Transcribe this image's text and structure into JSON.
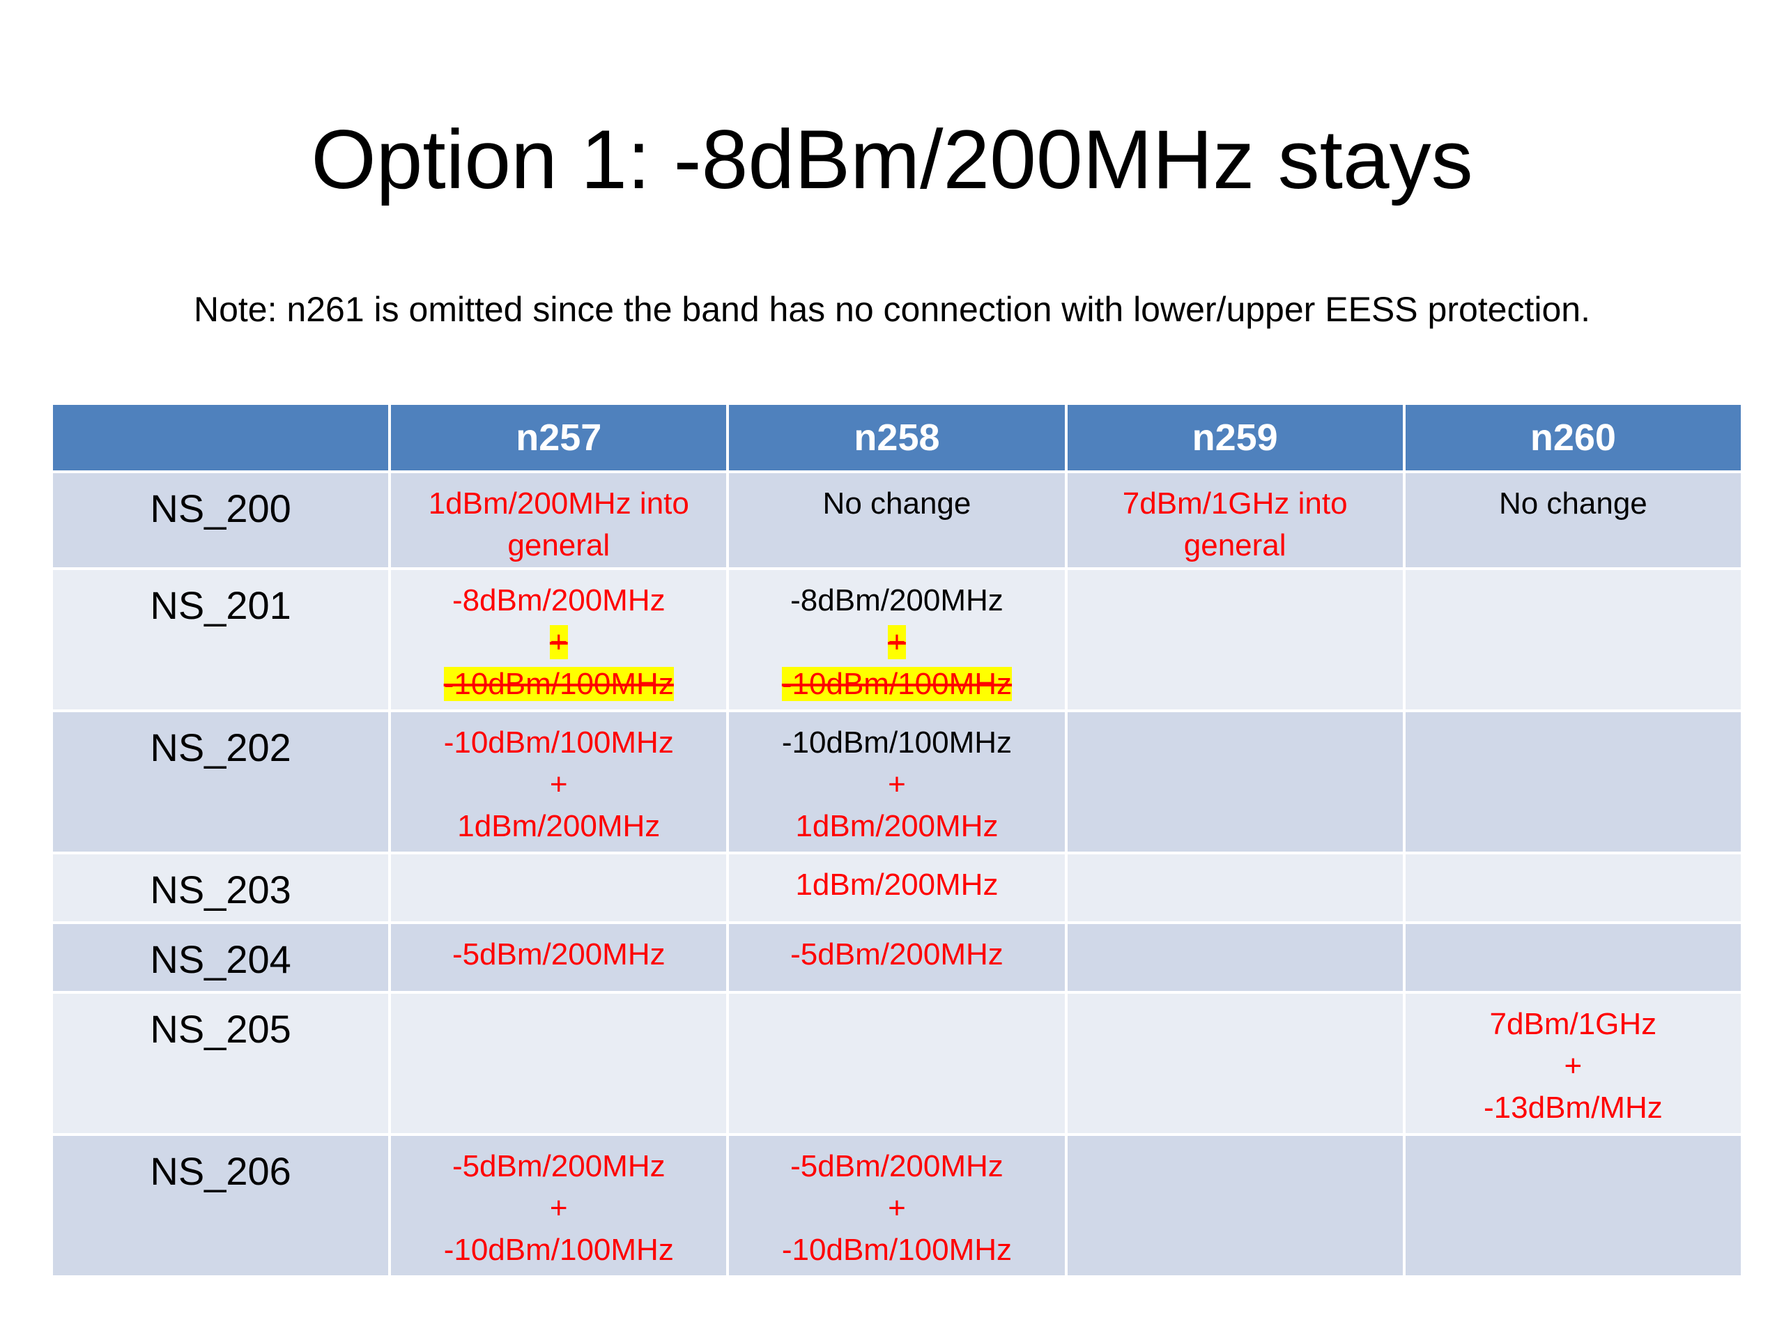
{
  "title": "Option 1: -8dBm/200MHz stays",
  "note": "Note: n261 is omitted since the band has no connection with lower/upper EESS protection.",
  "table": {
    "columns": [
      "n257",
      "n258",
      "n259",
      "n260"
    ],
    "rows": [
      {
        "label": "NS_200",
        "cells": [
          [
            {
              "text": "1dBm/200MHz into",
              "color": "#ff0000"
            },
            {
              "text": "general",
              "color": "#ff0000"
            }
          ],
          [
            {
              "text": "No change",
              "color": "#000000"
            }
          ],
          [
            {
              "text": "7dBm/1GHz into",
              "color": "#ff0000"
            },
            {
              "text": "general",
              "color": "#ff0000"
            }
          ],
          [
            {
              "text": "No change",
              "color": "#000000"
            }
          ]
        ]
      },
      {
        "label": "NS_201",
        "cells": [
          [
            {
              "text": "-8dBm/200MHz",
              "color": "#ff0000"
            },
            {
              "text": "+",
              "color": "#ff0000",
              "struck": true
            },
            {
              "text": "-10dBm/100MHz",
              "color": "#ff0000",
              "struck": true
            }
          ],
          [
            {
              "text": "-8dBm/200MHz",
              "color": "#000000"
            },
            {
              "text": "+",
              "color": "#ff0000",
              "struck": true
            },
            {
              "text": "-10dBm/100MHz",
              "color": "#ff0000",
              "struck": true
            }
          ],
          [],
          []
        ]
      },
      {
        "label": "NS_202",
        "cells": [
          [
            {
              "text": "-10dBm/100MHz",
              "color": "#ff0000"
            },
            {
              "text": "+",
              "color": "#ff0000"
            },
            {
              "text": "1dBm/200MHz",
              "color": "#ff0000"
            }
          ],
          [
            {
              "text": "-10dBm/100MHz",
              "color": "#000000"
            },
            {
              "text": "+",
              "color": "#ff0000"
            },
            {
              "text": "1dBm/200MHz",
              "color": "#ff0000"
            }
          ],
          [],
          []
        ]
      },
      {
        "label": "NS_203",
        "cells": [
          [],
          [
            {
              "text": "1dBm/200MHz",
              "color": "#ff0000"
            }
          ],
          [],
          []
        ]
      },
      {
        "label": "NS_204",
        "cells": [
          [
            {
              "text": "-5dBm/200MHz",
              "color": "#ff0000"
            }
          ],
          [
            {
              "text": "-5dBm/200MHz",
              "color": "#ff0000"
            }
          ],
          [],
          []
        ]
      },
      {
        "label": "NS_205",
        "cells": [
          [],
          [],
          [],
          [
            {
              "text": "7dBm/1GHz",
              "color": "#ff0000"
            },
            {
              "text": "+",
              "color": "#ff0000"
            },
            {
              "text": "-13dBm/MHz",
              "color": "#ff0000"
            }
          ]
        ]
      },
      {
        "label": "NS_206",
        "cells": [
          [
            {
              "text": "-5dBm/200MHz",
              "color": "#ff0000"
            },
            {
              "text": "+",
              "color": "#ff0000"
            },
            {
              "text": "-10dBm/100MHz",
              "color": "#ff0000"
            }
          ],
          [
            {
              "text": "-5dBm/200MHz",
              "color": "#ff0000"
            },
            {
              "text": "+",
              "color": "#ff0000"
            },
            {
              "text": "-10dBm/100MHz",
              "color": "#ff0000"
            }
          ],
          [],
          []
        ]
      }
    ]
  }
}
